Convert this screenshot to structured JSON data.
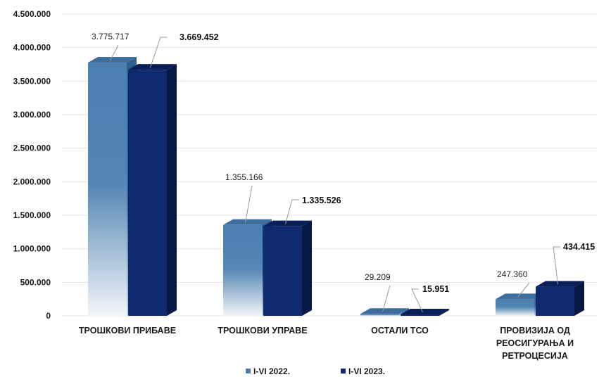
{
  "chart_data": {
    "type": "bar",
    "categories": [
      [
        "ТРОШКОВИ ПРИБАВЕ"
      ],
      [
        "ТРОШКОВИ УПРАВЕ"
      ],
      [
        "ОСТАЛИ ТСО"
      ],
      [
        "ПРОВИЗИЈА ОД",
        "РЕОСИГУРАЊА И",
        "РЕТРОЦЕСИЈА"
      ]
    ],
    "series": [
      {
        "name": "I-VI 2022.",
        "values": [
          3775717,
          1355166,
          29209,
          247360
        ],
        "labels": [
          "3.775.717",
          "1.355.166",
          "29.209",
          "247.360"
        ]
      },
      {
        "name": "I-VI 2023.",
        "values": [
          3669452,
          1335526,
          15951,
          434415
        ],
        "labels": [
          "3.669.452",
          "1.335.526",
          "15.951",
          "434.415"
        ]
      }
    ],
    "y_ticks": [
      "0",
      "500.000",
      "1.000.000",
      "1.500.000",
      "2.000.000",
      "2.500.000",
      "3.000.000",
      "3.500.000",
      "4.000.000",
      "4.500.000"
    ],
    "ylim": [
      0,
      4500000
    ],
    "grid": true,
    "legend_position": "bottom",
    "colors": {
      "series_2022": "#4a7fb0",
      "series_2023": "#0f2a6e",
      "grid": "#e3e3e3"
    }
  }
}
